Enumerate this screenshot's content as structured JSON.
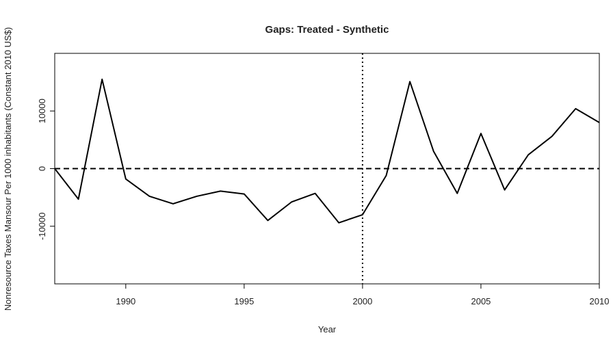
{
  "chart_data": {
    "type": "line",
    "title": "Gaps: Treated - Synthetic",
    "xlabel": "Year",
    "ylabel": "Nonresource Taxes Mansour Per 1000 inhabitants (Constant 2010 US$)",
    "x": [
      1987,
      1988,
      1989,
      1990,
      1991,
      1992,
      1993,
      1994,
      1995,
      1996,
      1997,
      1998,
      1999,
      2000,
      2001,
      2002,
      2003,
      2004,
      2005,
      2006,
      2007,
      2008,
      2009,
      2010
    ],
    "series": [
      {
        "color": "#000000",
        "values": [
          0,
          -5300,
          15500,
          -1800,
          -4800,
          -6100,
          -4800,
          -3900,
          -4400,
          -9000,
          -5800,
          -4300,
          -9400,
          -8000,
          -1200,
          15100,
          3000,
          -4300,
          6100,
          -3700,
          2400,
          5600,
          10400,
          8000
        ]
      }
    ],
    "xlim": [
      1987,
      2010
    ],
    "ylim": [
      -20000,
      20000
    ],
    "xticks": [
      1990,
      1995,
      2000,
      2005,
      2010
    ],
    "yticks": [
      -10000,
      0,
      10000
    ],
    "hline": 0,
    "vline": 2000
  }
}
